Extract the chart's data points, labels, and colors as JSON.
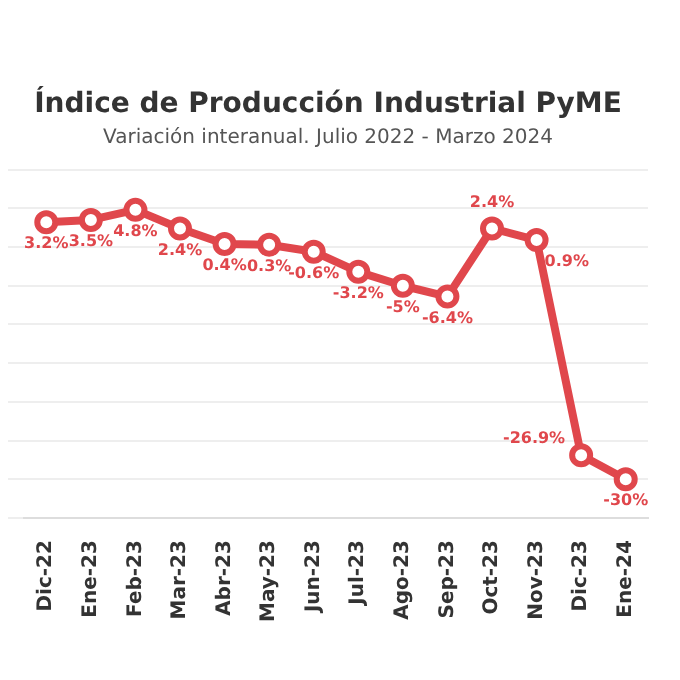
{
  "chart_data": {
    "type": "line",
    "title": "Índice de Producción Industrial PyME",
    "subtitle": "Variación interanual. Julio 2022 - Marzo 2024",
    "categories": [
      "Dic-22",
      "Ene-23",
      "Feb-23",
      "Mar-23",
      "Abr-23",
      "May-23",
      "Jun-23",
      "Jul-23",
      "Ago-23",
      "Sep-23",
      "Oct-23",
      "Nov-23",
      "Dic-23",
      "Ene-24"
    ],
    "series": [
      {
        "color": "#e0474c",
        "values": [
          3.2,
          3.5,
          4.8,
          2.4,
          0.4,
          0.3,
          -0.6,
          -3.2,
          -5,
          -6.4,
          2.4,
          0.9,
          -26.9,
          -30
        ],
        "value_labels": [
          "3.2%",
          "3.5%",
          "4.8%",
          "2.4%",
          "0.4%",
          "0.3%",
          "-0.6%",
          "-3.2%",
          "-5%",
          "-6.4%",
          "2.4%",
          "0.9%",
          "-26.9%",
          "-30%"
        ]
      }
    ],
    "ylim": [
      -35,
      10
    ],
    "yticks": [
      {
        "value": -35,
        "label": null
      },
      {
        "value": -30,
        "label": null
      },
      {
        "value": -25,
        "label": null
      },
      {
        "value": -20,
        "label": null
      },
      {
        "value": -15,
        "label": null
      },
      {
        "value": -10,
        "label": null
      },
      {
        "value": -5,
        "label": null
      },
      {
        "value": 0,
        "label": null
      },
      {
        "value": 5,
        "label": null
      },
      {
        "value": 10,
        "label": null
      }
    ],
    "grid": "y",
    "tick_labels": "x",
    "marker": "circle",
    "line_style": "solid",
    "legend": false
  }
}
